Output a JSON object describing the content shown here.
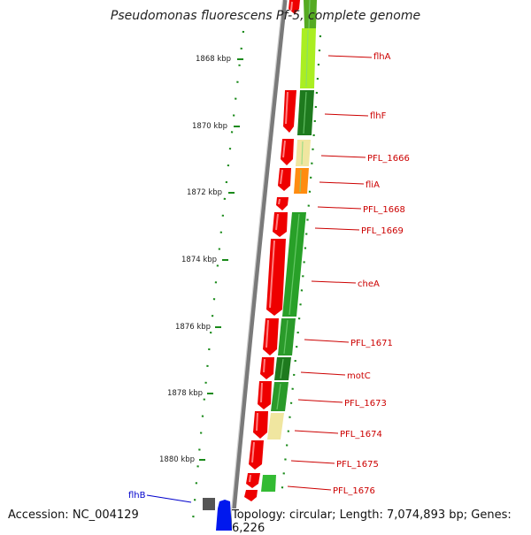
{
  "title": "Pseudomonas fluorescens Pf-5, complete genome",
  "footer": {
    "accession": "Accession: NC_004129",
    "summary": "Topology: circular; Length: 7,074,893 bp; Genes: 6,226"
  },
  "colors": {
    "backbone": "#888888",
    "forward_cds": "#ee0000",
    "reverse_cds": "#1e8a1e",
    "label_red": "#cc0000",
    "label_blue": "#0000cc",
    "tick_green": "#1a8a1a"
  },
  "ticks": [
    "1868 kbp",
    "1870 kbp",
    "1872 kbp",
    "1874 kbp",
    "1876 kbp",
    "1878 kbp",
    "1880 kbp"
  ],
  "gene_labels": [
    "flhA",
    "flhF",
    "PFL_1666",
    "fliA",
    "PFL_1668",
    "PFL_1669",
    "cheA",
    "PFL_1671",
    "motC",
    "PFL_1673",
    "PFL_1674",
    "PFL_1675",
    "PFL_1676",
    "flhB"
  ]
}
